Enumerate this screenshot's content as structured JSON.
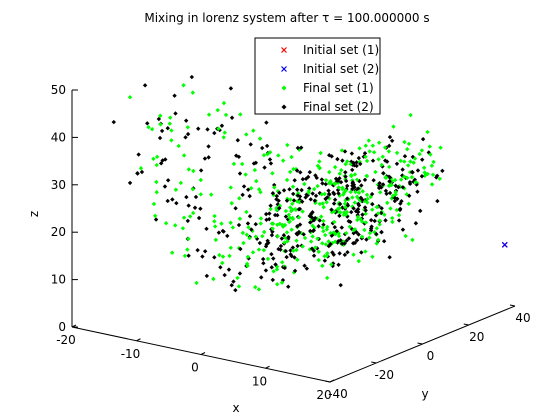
{
  "chart_data": {
    "type": "scatter",
    "projection": "3d",
    "title": "Mixing in lorenz system after τ = 100.000000 s",
    "xlabel": "x",
    "ylabel": "y",
    "zlabel": "z",
    "xlim": [
      -20,
      20
    ],
    "ylim": [
      -40,
      40
    ],
    "zlim": [
      0,
      50
    ],
    "x_ticks": [
      "-20",
      "-10",
      "0",
      "10",
      "20"
    ],
    "y_ticks": [
      "-40",
      "-20",
      "0",
      "20",
      "40"
    ],
    "z_ticks": [
      "0",
      "10",
      "20",
      "30",
      "40",
      "50"
    ],
    "legend_position": "top-right",
    "series": [
      {
        "name": "Initial set (1)",
        "marker": "x",
        "color": "#ff0000",
        "points": [
          [
            22,
            30,
            15.5
          ]
        ]
      },
      {
        "name": "Initial set (2)",
        "marker": "x",
        "color": "#0000ff",
        "points": [
          [
            22,
            30,
            15.5
          ]
        ]
      },
      {
        "name": "Final set (1)",
        "marker": "dot",
        "color": "#00ff00",
        "points": []
      },
      {
        "name": "Final set (2)",
        "marker": "dot",
        "color": "#000000",
        "points": []
      }
    ],
    "final_set_distribution": {
      "description_for_generator": "Lorenz attractor cloud",
      "approx_count_per_set": 420
    }
  }
}
